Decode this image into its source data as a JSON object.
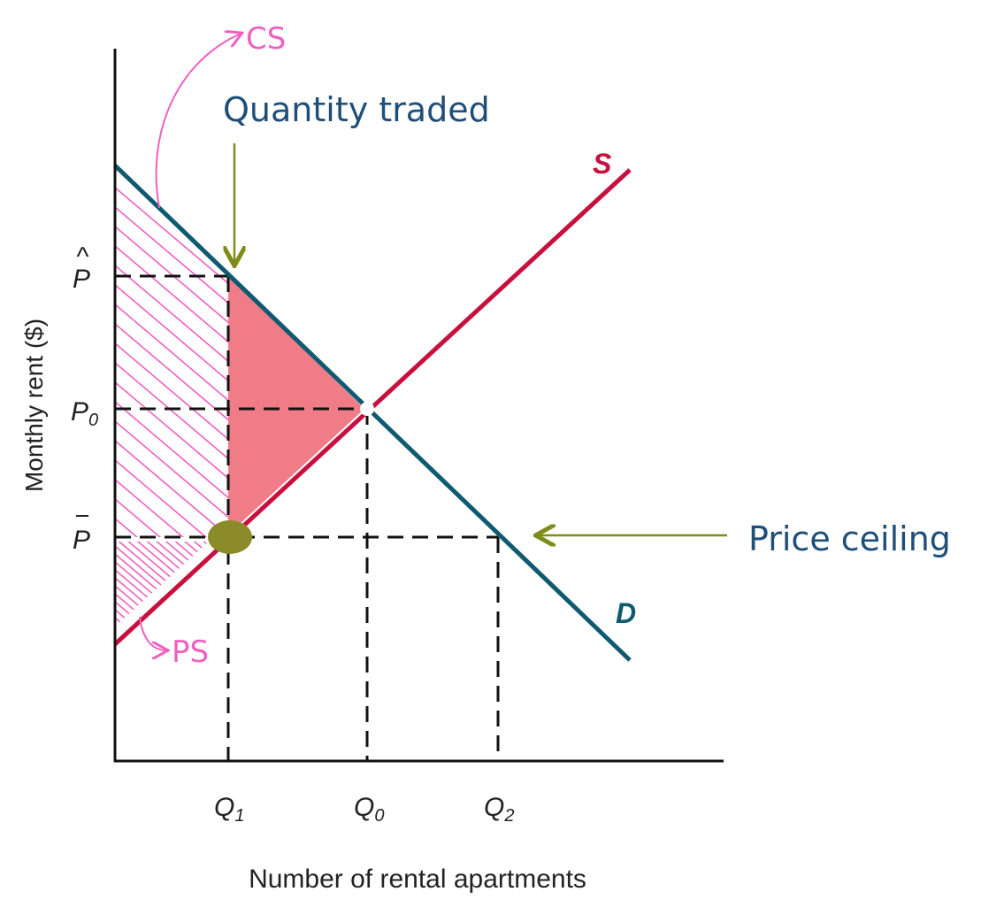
{
  "diagram": {
    "y_axis_label": "Monthly rent ($)",
    "x_axis_label": "Number of rental apartments",
    "price_ticks": {
      "p_hat": "P",
      "p_zero": "P",
      "p_zero_sub": "0",
      "p_bar": "P"
    },
    "quantity_ticks": [
      {
        "label": "Q",
        "sub": "1"
      },
      {
        "label": "Q",
        "sub": "0"
      },
      {
        "label": "Q",
        "sub": "2"
      }
    ],
    "supply_label": "S",
    "demand_label": "D",
    "annotation_quantity": "Quantity traded",
    "annotation_price": "Price ceiling",
    "handwritten_cs": "CS",
    "handwritten_ps": "PS",
    "colors": {
      "supply": "#c8103e",
      "demand": "#0e5a70",
      "deadweight_loss": "#f07c88",
      "annotation_text": "#1f4e79",
      "arrow": "#7f8c1a",
      "point": "#8b8b2a",
      "hatch": "#f060c0"
    }
  }
}
